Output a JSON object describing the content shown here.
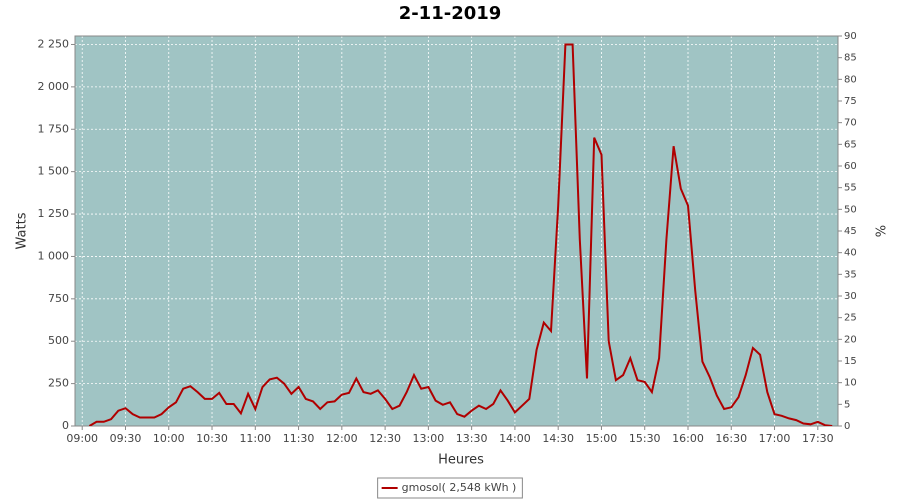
{
  "chart_data": {
    "type": "line",
    "title": "2-11-2019",
    "x_label": "Heures",
    "y_label": "Watts",
    "y2_label": "%",
    "x": [
      "09:05",
      "09:10",
      "09:15",
      "09:20",
      "09:25",
      "09:30",
      "09:35",
      "09:40",
      "09:45",
      "09:50",
      "09:55",
      "10:00",
      "10:05",
      "10:10",
      "10:15",
      "10:20",
      "10:25",
      "10:30",
      "10:35",
      "10:40",
      "10:45",
      "10:50",
      "10:55",
      "11:00",
      "11:05",
      "11:10",
      "11:15",
      "11:20",
      "11:25",
      "11:30",
      "11:35",
      "11:40",
      "11:45",
      "11:50",
      "11:55",
      "12:00",
      "12:05",
      "12:10",
      "12:15",
      "12:20",
      "12:25",
      "12:30",
      "12:35",
      "12:40",
      "12:45",
      "12:50",
      "12:55",
      "13:00",
      "13:05",
      "13:10",
      "13:15",
      "13:20",
      "13:25",
      "13:30",
      "13:35",
      "13:40",
      "13:45",
      "13:50",
      "13:55",
      "14:00",
      "14:05",
      "14:10",
      "14:15",
      "14:20",
      "14:25",
      "14:30",
      "14:35",
      "14:40",
      "14:45",
      "14:50",
      "14:55",
      "15:00",
      "15:05",
      "15:10",
      "15:15",
      "15:20",
      "15:25",
      "15:30",
      "15:35",
      "15:40",
      "15:45",
      "15:50",
      "15:55",
      "16:00",
      "16:05",
      "16:10",
      "16:15",
      "16:20",
      "16:25",
      "16:30",
      "16:35",
      "16:40",
      "16:45",
      "16:50",
      "16:55",
      "17:00",
      "17:05",
      "17:10",
      "17:15",
      "17:20",
      "17:25",
      "17:30",
      "17:35",
      "17:40"
    ],
    "series": [
      {
        "name": "gmosol( 2,548 kWh )",
        "color": "#b00000",
        "axis": "y",
        "values": [
          0,
          25,
          25,
          40,
          90,
          105,
          70,
          50,
          50,
          50,
          70,
          110,
          140,
          220,
          235,
          200,
          160,
          160,
          195,
          130,
          130,
          75,
          190,
          100,
          230,
          275,
          285,
          250,
          190,
          230,
          160,
          145,
          100,
          140,
          145,
          185,
          195,
          280,
          200,
          190,
          210,
          160,
          100,
          120,
          200,
          300,
          220,
          230,
          150,
          125,
          140,
          70,
          55,
          90,
          120,
          100,
          130,
          210,
          150,
          80,
          120,
          160,
          450,
          610,
          560,
          1300,
          2250,
          2250,
          1100,
          280,
          1700,
          1600,
          500,
          270,
          300,
          400,
          270,
          260,
          200,
          400,
          1100,
          1650,
          1400,
          1300,
          800,
          380,
          290,
          180,
          100,
          110,
          170,
          300,
          460,
          420,
          200,
          70,
          60,
          45,
          35,
          15,
          10,
          25,
          5,
          0
        ]
      }
    ],
    "xlim": [
      "08:55",
      "17:44"
    ],
    "xticks": [
      "09:00",
      "09:30",
      "10:00",
      "10:30",
      "11:00",
      "11:30",
      "12:00",
      "12:30",
      "13:00",
      "13:30",
      "14:00",
      "14:30",
      "15:00",
      "15:30",
      "16:00",
      "16:30",
      "17:00",
      "17:30"
    ],
    "ylim": [
      0,
      2300
    ],
    "yticks": [
      0,
      250,
      500,
      750,
      {
        "value": 1000,
        "label": "1 000"
      },
      {
        "value": 1250,
        "label": "1 250"
      },
      {
        "value": 1500,
        "label": "1 500"
      },
      {
        "value": 1750,
        "label": "1 750"
      },
      {
        "value": 2000,
        "label": "2 000"
      },
      {
        "value": 2250,
        "label": "2 250"
      }
    ],
    "y2lim": [
      0,
      90
    ],
    "y2ticks": [
      0,
      5,
      10,
      15,
      20,
      25,
      30,
      35,
      40,
      45,
      50,
      55,
      60,
      65,
      70,
      75,
      80,
      85,
      90
    ],
    "grid": true,
    "plot_background": "#a0c4c4",
    "legend": "bottom"
  }
}
